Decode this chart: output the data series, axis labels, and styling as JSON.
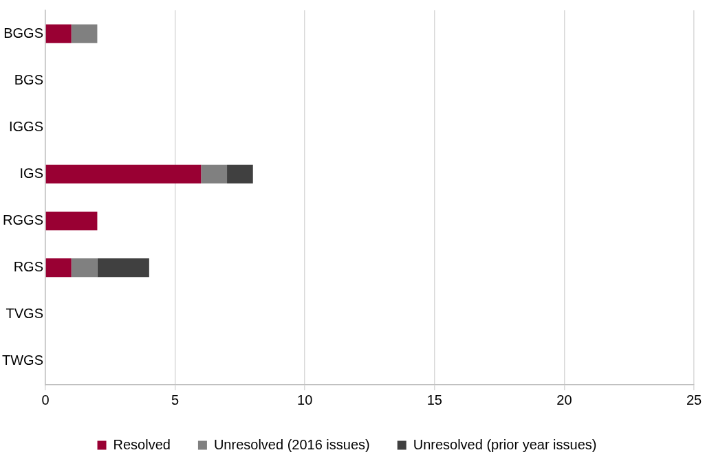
{
  "chart_data": {
    "type": "bar",
    "orientation": "horizontal",
    "stacked": true,
    "categories": [
      "BGGS",
      "BGS",
      "IGGS",
      "IGS",
      "RGGS",
      "RGS",
      "TVGS",
      "TWGS"
    ],
    "series": [
      {
        "name": "Resolved",
        "color": "#990033",
        "values": [
          1,
          0,
          0,
          6,
          2,
          1,
          0,
          0
        ]
      },
      {
        "name": "Unresolved (2016 issues)",
        "color": "#808080",
        "values": [
          1,
          0,
          0,
          1,
          0,
          1,
          0,
          0
        ]
      },
      {
        "name": "Unresolved (prior year issues)",
        "color": "#404040",
        "values": [
          0,
          0,
          0,
          1,
          0,
          2,
          0,
          0
        ]
      }
    ],
    "xlim": [
      0,
      25
    ],
    "xticks": [
      0,
      5,
      10,
      15,
      20,
      25
    ],
    "grid": "x",
    "legend": "bottom"
  }
}
